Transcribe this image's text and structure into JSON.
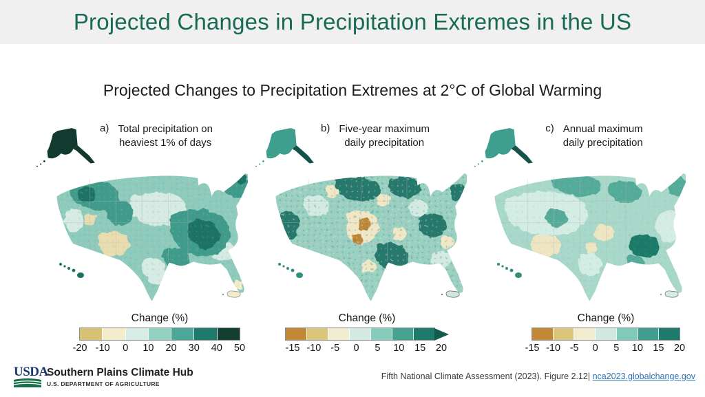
{
  "header": {
    "title": "Projected Changes in Precipitation Extremes in the US",
    "bg_color": "#f0f0f1",
    "text_color": "#186a55"
  },
  "figure": {
    "title": "Projected Changes to Precipitation Extremes at 2°C of Global Warming",
    "panels": [
      {
        "label": "a)",
        "caption_line1": "Total precipitation on",
        "caption_line2": "heaviest 1% of days",
        "legend_title": "Change (%)",
        "ticks": [
          "-20",
          "-10",
          "0",
          "10",
          "20",
          "30",
          "40",
          "50"
        ],
        "segment_colors": [
          "#d8c172",
          "#f3ecca",
          "#d6ece4",
          "#93d2c2",
          "#4ba797",
          "#1d7b6c",
          "#123f31"
        ],
        "arrow_color": null
      },
      {
        "label": "b)",
        "caption_line1": "Five-year maximum",
        "caption_line2": "daily precipitation",
        "legend_title": "Change (%)",
        "ticks": [
          "-15",
          "-10",
          "-5",
          "0",
          "5",
          "10",
          "15",
          "20"
        ],
        "segment_colors": [
          "#c28836",
          "#dac57b",
          "#f2ecce",
          "#d2eae2",
          "#86ccbc",
          "#46a392",
          "#1d7b6c"
        ],
        "arrow_color": "#145a4e"
      },
      {
        "label": "c)",
        "caption_line1": "Annual maximum",
        "caption_line2": "daily precipitation",
        "legend_title": "Change (%)",
        "ticks": [
          "-15",
          "-10",
          "-5",
          "0",
          "5",
          "10",
          "15",
          "20"
        ],
        "segment_colors": [
          "#c28836",
          "#dac57b",
          "#f2ecce",
          "#cfe9e1",
          "#7fcaba",
          "#3f9e8d",
          "#1d7b6c"
        ],
        "arrow_color": null
      }
    ]
  },
  "footer": {
    "usda": "USDA",
    "org": "Southern Plains Climate Hub",
    "dept": "U.S. DEPARTMENT OF AGRICULTURE",
    "citation": "Fifth National Climate Assessment (2023). Figure 2.12| ",
    "link": "nca2023.globalchange.gov",
    "link_color": "#2e74b5"
  },
  "chart_data": [
    {
      "type": "heatmap",
      "panel": "a",
      "figure_title": "Projected Changes to Precipitation Extremes at 2°C of Global Warming",
      "title": "Total precipitation on heaviest 1% of days",
      "geography": [
        "Contiguous US",
        "Alaska",
        "Hawaii",
        "Puerto Rico"
      ],
      "legend_title": "Change (%)",
      "scale_ticks": [
        -20,
        -10,
        0,
        10,
        20,
        30,
        40,
        50
      ],
      "scale_colors": [
        "#d8c172",
        "#f3ecca",
        "#d6ece4",
        "#93d2c2",
        "#4ba797",
        "#1d7b6c",
        "#123f31"
      ],
      "open_ended_max": false,
      "pattern_summary": "Most of the US shows 10–30% increases; strongest increases (30–50%) over the Ohio Valley/Appalachians, Pacific Northwest, Northeast, Alaska and Hawaii; scattered 0 to −20% decreases in the Desert Southwest/Four Corners, south Florida and Puerto Rico."
    },
    {
      "type": "heatmap",
      "panel": "b",
      "figure_title": "Projected Changes to Precipitation Extremes at 2°C of Global Warming",
      "title": "Five-year maximum daily precipitation",
      "geography": [
        "Contiguous US",
        "Alaska",
        "Hawaii",
        "Puerto Rico"
      ],
      "legend_title": "Change (%)",
      "scale_ticks": [
        -15,
        -10,
        -5,
        0,
        5,
        10,
        15,
        20
      ],
      "scale_colors": [
        "#c28836",
        "#dac57b",
        "#f2ecce",
        "#d2eae2",
        "#86ccbc",
        "#46a392",
        "#1d7b6c"
      ],
      "open_ended_max": true,
      "pattern_summary": "Noisy mix of mostly 5–20% increases with scattered 0 to −15% decreases in the central Plains and Southwest; strongest increases along the West Coast, northern Plains, Great Lakes, Appalachians and Gulf Coast."
    },
    {
      "type": "heatmap",
      "panel": "c",
      "figure_title": "Projected Changes to Precipitation Extremes at 2°C of Global Warming",
      "title": "Annual maximum daily precipitation",
      "geography": [
        "Contiguous US",
        "Alaska",
        "Hawaii",
        "Puerto Rico"
      ],
      "legend_title": "Change (%)",
      "scale_ticks": [
        -15,
        -10,
        -5,
        0,
        5,
        10,
        15,
        20
      ],
      "scale_colors": [
        "#c28836",
        "#dac57b",
        "#f2ecce",
        "#cfe9e1",
        "#7fcaba",
        "#3f9e8d",
        "#1d7b6c"
      ],
      "open_ended_max": false,
      "pattern_summary": "Smoother pattern of mostly 0–10% increases; 10–20% increases over the Tennessee Valley, upper Midwest, Great Lakes and New England; small decreases in Arizona and parts of the central US."
    }
  ]
}
